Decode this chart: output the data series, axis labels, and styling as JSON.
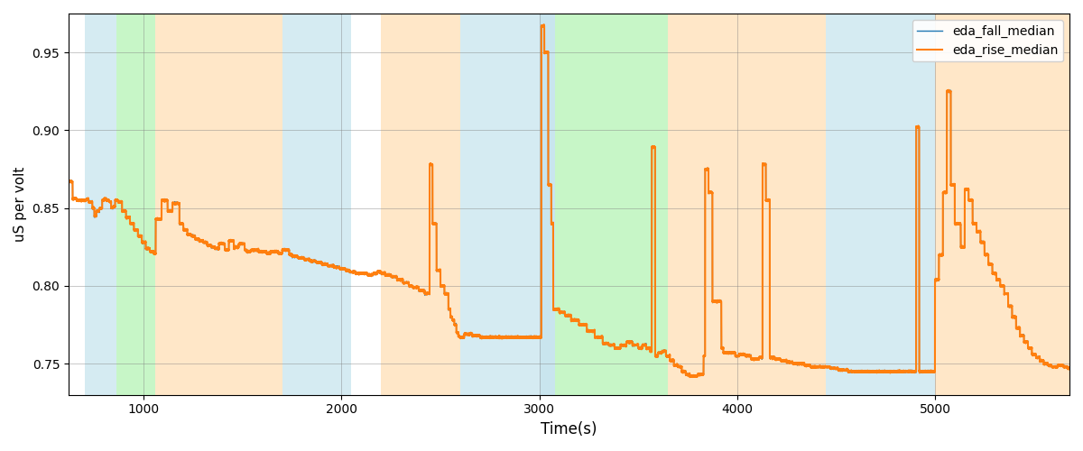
{
  "xlabel": "Time(s)",
  "ylabel": "uS per volt",
  "ylim": [
    0.73,
    0.975
  ],
  "xlim": [
    620,
    5680
  ],
  "legend_labels": [
    "eda_fall_median",
    "eda_rise_median"
  ],
  "legend_colors": [
    "#1f77b4",
    "#ff7f0e"
  ],
  "bg_bands": [
    {
      "xmin": 700,
      "xmax": 860,
      "color": "#add8e6",
      "alpha": 0.5
    },
    {
      "xmin": 860,
      "xmax": 1060,
      "color": "#90ee90",
      "alpha": 0.5
    },
    {
      "xmin": 1060,
      "xmax": 1700,
      "color": "#ffd59b",
      "alpha": 0.55
    },
    {
      "xmin": 1700,
      "xmax": 2050,
      "color": "#add8e6",
      "alpha": 0.5
    },
    {
      "xmin": 2200,
      "xmax": 2600,
      "color": "#ffd59b",
      "alpha": 0.55
    },
    {
      "xmin": 2600,
      "xmax": 3000,
      "color": "#add8e6",
      "alpha": 0.5
    },
    {
      "xmin": 3000,
      "xmax": 3080,
      "color": "#add8e6",
      "alpha": 0.65
    },
    {
      "xmin": 3080,
      "xmax": 3650,
      "color": "#90ee90",
      "alpha": 0.5
    },
    {
      "xmin": 3650,
      "xmax": 4450,
      "color": "#ffd59b",
      "alpha": 0.55
    },
    {
      "xmin": 4450,
      "xmax": 5000,
      "color": "#add8e6",
      "alpha": 0.5
    },
    {
      "xmin": 5000,
      "xmax": 5700,
      "color": "#ffd59b",
      "alpha": 0.55
    }
  ],
  "fig_width": 12.0,
  "fig_height": 5.0,
  "dpi": 100
}
